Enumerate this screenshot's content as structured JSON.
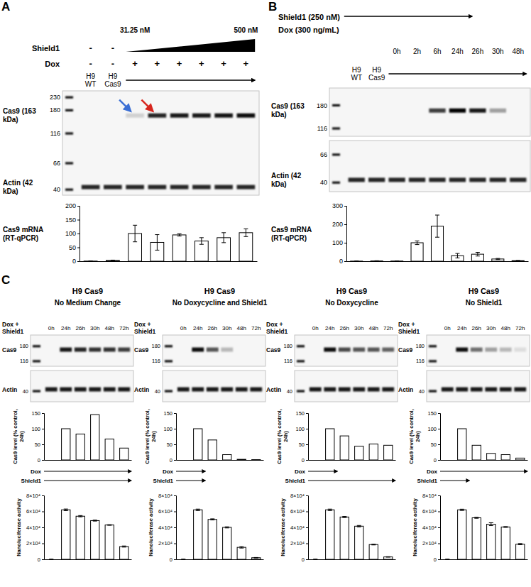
{
  "chart_data": [
    {
      "type": "blot",
      "panel": "A",
      "log": "y",
      "color": "#000000",
      "lanes": [
        "H9 WT",
        "H9 Cas9",
        null,
        null,
        null,
        null,
        null,
        null
      ],
      "header_rows": [
        {
          "label": "Shield1",
          "values": [
            "-",
            "-",
            null,
            null,
            null,
            null,
            null,
            null
          ],
          "gradient": {
            "start": "31.25 nM",
            "end": "500 nM"
          }
        },
        {
          "label": "Dox",
          "values": [
            "-",
            "-",
            "+",
            "+",
            "+",
            "+",
            "+",
            "+"
          ]
        }
      ],
      "lane_arrows": [
        null,
        null,
        "#3b6fd4",
        "#d7261e",
        null,
        null,
        null,
        null
      ],
      "sections": [
        {
          "ylim": [
            260,
            36
          ],
          "yticks": [
            230,
            180,
            116,
            66,
            40
          ],
          "bands": [
            {
              "name": "Cas9 (163 kDa)",
              "mw": 163,
              "values": [
                0,
                0,
                0.15,
                0.85,
                0.9,
                0.9,
                0.92,
                0.95
              ]
            },
            {
              "name": "Actin (42 kDa)",
              "mw": 42,
              "values": [
                0.85,
                0.85,
                0.85,
                0.85,
                0.85,
                0.85,
                0.85,
                0.85
              ]
            }
          ]
        }
      ]
    },
    {
      "type": "bar",
      "y_label": "Cas9 mRNA (RT-qPCR)",
      "color": "#ffffff",
      "categories": [
        null,
        null,
        null,
        null,
        null,
        null,
        null,
        null
      ],
      "values": [
        0.5,
        3,
        100,
        68,
        95,
        73,
        85,
        103
      ],
      "errors": [
        0.5,
        1,
        30,
        28,
        4,
        12,
        18,
        14
      ],
      "ylim": [
        0,
        200
      ],
      "yticks": [
        0,
        50,
        100,
        150,
        200
      ],
      "tick_labels": "y"
    },
    {
      "type": "blot",
      "panel": "B",
      "log": "y",
      "color": "#000000",
      "treatments": [
        "Shield1 (250 nM)",
        "Dox (300 ng/mL)"
      ],
      "timepoints": [
        null,
        null,
        "0h",
        "2h",
        "6h",
        "24h",
        "26h",
        "30h",
        "48h"
      ],
      "lanes": [
        "H9 WT",
        "H9 Cas9",
        null,
        null,
        null,
        null,
        null,
        null,
        null
      ],
      "sections": [
        {
          "ylim": [
            250,
            100
          ],
          "yticks": [
            180,
            116
          ],
          "bands": [
            {
              "name": "Cas9 (163 kDa)",
              "mw": 163,
              "values": [
                0,
                0,
                0,
                0,
                0.75,
                1,
                0.9,
                0.35,
                0
              ]
            }
          ]
        },
        {
          "ylim": [
            85,
            34
          ],
          "yticks": [
            66,
            40
          ],
          "bands": [
            {
              "name": "Actin (42 kDa)",
              "mw": 42,
              "values": [
                0.85,
                0.85,
                0.85,
                0.85,
                0.85,
                0.85,
                0.85,
                0.85,
                0.85
              ]
            }
          ]
        }
      ]
    },
    {
      "type": "bar",
      "y_label": "Cas9 mRNA (RT-qPCR)",
      "color": "#ffffff",
      "categories": [
        null,
        null,
        null,
        null,
        null,
        null,
        null,
        null,
        null
      ],
      "values": [
        0.5,
        1.5,
        1,
        100,
        190,
        30,
        38,
        12,
        3
      ],
      "errors": [
        0.5,
        1,
        0.5,
        10,
        60,
        12,
        10,
        3,
        1
      ],
      "ylim": [
        0,
        300
      ],
      "yticks": [
        0,
        100,
        200,
        300
      ],
      "tick_labels": "y"
    },
    {
      "type": "blot",
      "panel": "C",
      "title": "H9 Cas9",
      "subtitle": "No Medium Change",
      "log": "y",
      "color": "#000000",
      "header_label": "Dox + Shield1",
      "lanes": [
        "0h",
        "24h",
        "26h",
        "30h",
        "48h",
        "72h"
      ],
      "treatments": [
        {
          "name": "Dox",
          "until": "72h"
        },
        {
          "name": "Shield1",
          "until": "72h"
        }
      ],
      "sections": [
        {
          "ylim": [
            250,
            100
          ],
          "yticks": [
            180,
            116
          ],
          "bands": [
            {
              "name": "Cas9",
              "mw": 163,
              "values": [
                0,
                0.9,
                0.85,
                0.8,
                0.8,
                0.75
              ]
            }
          ]
        },
        {
          "ylim": [
            70,
            30
          ],
          "yticks": [
            40
          ],
          "bands": [
            {
              "name": "Actin",
              "mw": 42,
              "values": [
                0.9,
                0.9,
                0.9,
                0.9,
                0.9,
                0.9
              ]
            }
          ]
        }
      ]
    },
    {
      "type": "bar",
      "y_label": "Cas9 level (% control, 24h)",
      "color": "#ffffff",
      "categories": [
        null,
        null,
        null,
        null,
        null,
        null
      ],
      "values": [
        0,
        100,
        83,
        145,
        67,
        38
      ],
      "ylim": [
        0,
        150
      ],
      "yticks": [
        0,
        50,
        100,
        150
      ],
      "tick_labels": "y"
    },
    {
      "type": "bar",
      "y_label": "Nanoluciferase activity",
      "color": "#ffffff",
      "categories": [
        null,
        null,
        null,
        null,
        null,
        null
      ],
      "values": [
        0,
        62000,
        54000,
        48500,
        43000,
        16000
      ],
      "errors": [
        200,
        1000,
        800,
        600,
        400,
        700
      ],
      "ylim": [
        0,
        80000
      ],
      "yticks": [
        0,
        {
          "value": 20000,
          "label": "2×10⁴"
        },
        {
          "value": 40000,
          "label": "4×10⁴"
        },
        {
          "value": 60000,
          "label": "6×10⁴"
        },
        {
          "value": 80000,
          "label": "8×10⁴"
        }
      ],
      "tick_labels": "y"
    },
    {
      "type": "blot",
      "title": "H9 Cas9",
      "subtitle": "No Doxycycline and Shield1",
      "log": "y",
      "color": "#000000",
      "header_label": "Dox + Shield1",
      "lanes": [
        "0h",
        "24h",
        "26h",
        "30h",
        "48h",
        "72h"
      ],
      "treatments": [
        {
          "name": "Dox",
          "until": "24h"
        },
        {
          "name": "Shield1",
          "until": "24h"
        }
      ],
      "sections": [
        {
          "ylim": [
            250,
            100
          ],
          "yticks": [
            180,
            116
          ],
          "bands": [
            {
              "name": "Cas9",
              "mw": 163,
              "values": [
                0,
                0.95,
                0.65,
                0.25,
                0,
                0
              ]
            }
          ]
        },
        {
          "ylim": [
            70,
            30
          ],
          "yticks": [
            40
          ],
          "bands": [
            {
              "name": "Actin",
              "mw": 42,
              "values": [
                0.9,
                0.9,
                0.9,
                0.9,
                0.9,
                0.9
              ]
            }
          ]
        }
      ]
    },
    {
      "type": "bar",
      "y_label": "Cas9 level (% control, 24h)",
      "color": "#ffffff",
      "categories": [
        null,
        null,
        null,
        null,
        null,
        null
      ],
      "values": [
        0,
        100,
        64,
        17,
        2,
        1
      ],
      "ylim": [
        0,
        150
      ],
      "yticks": [
        0,
        50,
        100,
        150
      ],
      "tick_labels": "y"
    },
    {
      "type": "bar",
      "y_label": "Nanoluciferase activity",
      "color": "#ffffff",
      "categories": [
        null,
        null,
        null,
        null,
        null,
        null
      ],
      "values": [
        0,
        62000,
        50000,
        40000,
        15000,
        2000
      ],
      "errors": [
        200,
        900,
        700,
        700,
        900,
        300
      ],
      "ylim": [
        0,
        80000
      ],
      "yticks": [
        0,
        {
          "value": 20000,
          "label": "2×10⁴"
        },
        {
          "value": 40000,
          "label": "4×10⁴"
        },
        {
          "value": 60000,
          "label": "6×10⁴"
        },
        {
          "value": 80000,
          "label": "8×10⁴"
        }
      ],
      "tick_labels": "y"
    },
    {
      "type": "blot",
      "title": "H9 Cas9",
      "subtitle": "No Doxycycline",
      "log": "y",
      "color": "#000000",
      "header_label": "Dox + Shield1",
      "lanes": [
        "0h",
        "24h",
        "26h",
        "30h",
        "48h",
        "72h"
      ],
      "treatments": [
        {
          "name": "Dox",
          "until": "24h"
        },
        {
          "name": "Shield1",
          "until": "72h"
        }
      ],
      "sections": [
        {
          "ylim": [
            250,
            100
          ],
          "yticks": [
            180,
            116
          ],
          "bands": [
            {
              "name": "Cas9",
              "mw": 163,
              "values": [
                0,
                0.95,
                0.7,
                0.65,
                0.65,
                0.6
              ]
            }
          ]
        },
        {
          "ylim": [
            70,
            30
          ],
          "yticks": [
            40
          ],
          "bands": [
            {
              "name": "Actin",
              "mw": 42,
              "values": [
                0.9,
                0.9,
                0.9,
                0.9,
                0.9,
                0.9
              ]
            }
          ]
        }
      ]
    },
    {
      "type": "bar",
      "y_label": "Cas9 level (% control, 24h)",
      "color": "#ffffff",
      "categories": [
        null,
        null,
        null,
        null,
        null,
        null
      ],
      "values": [
        0,
        100,
        77,
        44,
        51,
        47
      ],
      "ylim": [
        0,
        150
      ],
      "yticks": [
        0,
        50,
        100,
        150
      ],
      "tick_labels": "y"
    },
    {
      "type": "bar",
      "y_label": "Nanoluciferase activity",
      "color": "#ffffff",
      "categories": [
        null,
        null,
        null,
        null,
        null,
        null
      ],
      "values": [
        0,
        62000,
        53000,
        41500,
        18500,
        3000
      ],
      "errors": [
        200,
        900,
        700,
        900,
        500,
        300
      ],
      "ylim": [
        0,
        80000
      ],
      "yticks": [
        0,
        {
          "value": 20000,
          "label": "2×10⁴"
        },
        {
          "value": 40000,
          "label": "4×10⁴"
        },
        {
          "value": 60000,
          "label": "6×10⁴"
        },
        {
          "value": 80000,
          "label": "8×10⁴"
        }
      ],
      "tick_labels": "y"
    },
    {
      "type": "blot",
      "title": "H9 Cas9",
      "subtitle": "No Shield1",
      "log": "y",
      "color": "#000000",
      "header_label": "Dox + Shield1",
      "lanes": [
        "0h",
        "24h",
        "26h",
        "30h",
        "48h",
        "72h"
      ],
      "treatments": [
        {
          "name": "Dox",
          "until": "72h"
        },
        {
          "name": "Shield1",
          "until": "24h"
        }
      ],
      "sections": [
        {
          "ylim": [
            250,
            100
          ],
          "yticks": [
            180,
            116
          ],
          "bands": [
            {
              "name": "Cas9",
              "mw": 163,
              "values": [
                0,
                0.95,
                0.55,
                0.35,
                0.25,
                0.1
              ]
            }
          ]
        },
        {
          "ylim": [
            70,
            30
          ],
          "yticks": [
            40
          ],
          "bands": [
            {
              "name": "Actin",
              "mw": 42,
              "values": [
                0.9,
                0.9,
                0.9,
                0.9,
                0.9,
                0.9
              ]
            }
          ]
        }
      ]
    },
    {
      "type": "bar",
      "y_label": "Cas9 level (% control, 24h)",
      "color": "#ffffff",
      "categories": [
        null,
        null,
        null,
        null,
        null,
        null
      ],
      "values": [
        0,
        100,
        47,
        21,
        17,
        6
      ],
      "ylim": [
        0,
        150
      ],
      "yticks": [
        0,
        50,
        100,
        150
      ],
      "tick_labels": "y"
    },
    {
      "type": "bar",
      "y_label": "Nanoluciferase activity",
      "color": "#ffffff",
      "categories": [
        null,
        null,
        null,
        null,
        null,
        null
      ],
      "values": [
        0,
        62000,
        52000,
        44000,
        40500,
        19000
      ],
      "errors": [
        200,
        800,
        600,
        1800,
        500,
        700
      ],
      "ylim": [
        0,
        80000
      ],
      "yticks": [
        0,
        {
          "value": 20000,
          "label": "2×10⁴"
        },
        {
          "value": 40000,
          "label": "4×10⁴"
        },
        {
          "value": 60000,
          "label": "6×10⁴"
        },
        {
          "value": 80000,
          "label": "8×10⁴"
        }
      ],
      "tick_labels": "y"
    }
  ]
}
